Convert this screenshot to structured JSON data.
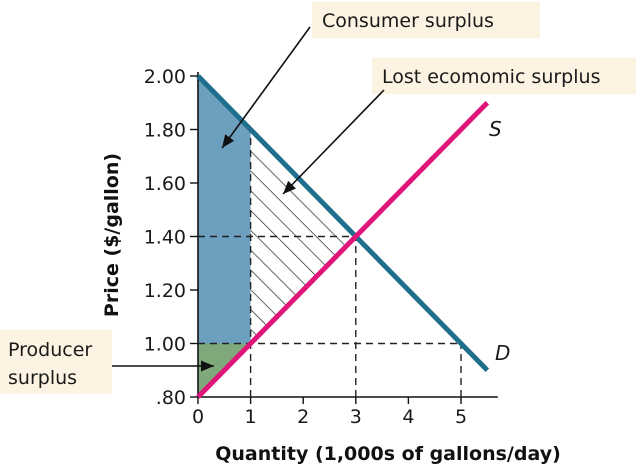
{
  "chart_data": {
    "type": "line",
    "xlabel": "Quantity (1,000s of gallons/day)",
    "ylabel": "Price ($/gallon)",
    "xlim": [
      0,
      5.7
    ],
    "ylim": [
      0.8,
      2.0
    ],
    "x_ticks": [
      "0",
      "1",
      "2",
      "3",
      "4",
      "5"
    ],
    "y_ticks": [
      ".80",
      "1.00",
      "1.20",
      "1.40",
      "1.60",
      "1.80",
      "2.00"
    ],
    "series": [
      {
        "name": "D",
        "x": [
          0,
          5.5
        ],
        "y": [
          2.0,
          0.9
        ]
      },
      {
        "name": "S",
        "x": [
          0,
          5.5
        ],
        "y": [
          0.8,
          1.9
        ]
      }
    ],
    "reference_lines": [
      {
        "x": [
          1,
          1
        ],
        "y": [
          0.8,
          1.8
        ]
      },
      {
        "x": [
          3,
          3
        ],
        "y": [
          0.8,
          1.4
        ]
      },
      {
        "x": [
          5,
          5
        ],
        "y": [
          0.8,
          1.0
        ]
      },
      {
        "x": [
          0,
          3
        ],
        "y": [
          1.4,
          1.4
        ]
      },
      {
        "x": [
          0,
          5
        ],
        "y": [
          1.0,
          1.0
        ]
      }
    ],
    "annotations": {
      "consumer_surplus": "Consumer surplus",
      "lost_surplus": "Lost ecomomic surplus",
      "producer_surplus_line1": "Producer",
      "producer_surplus_line2": "surplus"
    },
    "colors": {
      "demand": "#1f6e8c",
      "supply": "#e0157a",
      "consumer_fill": "#6d9fbf",
      "producer_fill": "#7fa97a",
      "callout_bg": "#fcf3e2"
    }
  }
}
